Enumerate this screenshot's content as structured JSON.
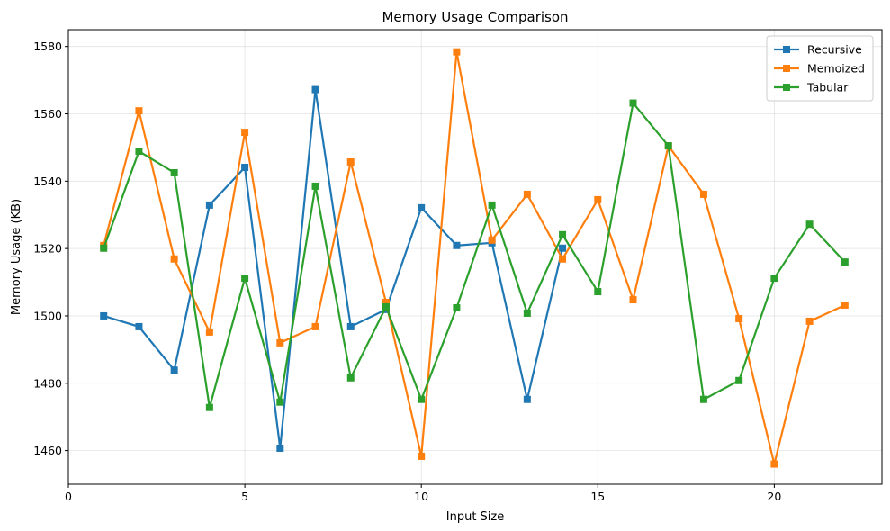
{
  "chart_data": {
    "type": "line",
    "title": "Memory Usage Comparison",
    "xlabel": "Input Size",
    "ylabel": "Memory Usage (KB)",
    "xlim": [
      0,
      23.05
    ],
    "ylim": [
      1450,
      1585
    ],
    "xticks": [
      0,
      5,
      10,
      15,
      20
    ],
    "yticks": [
      1460,
      1480,
      1500,
      1520,
      1540,
      1560,
      1580
    ],
    "grid": true,
    "legend_position": "top-right",
    "x": [
      1,
      2,
      3,
      4,
      5,
      6,
      7,
      8,
      9,
      10,
      11,
      12,
      13,
      14,
      15,
      16,
      17,
      18,
      19,
      20,
      21,
      22
    ],
    "series": [
      {
        "name": "Recursive",
        "color": "#1f77b4",
        "x": [
          1,
          2,
          3,
          4,
          5,
          6,
          7,
          8,
          9,
          10,
          11,
          12,
          13,
          14
        ],
        "values": [
          1500.0,
          1496.8,
          1483.9,
          1532.9,
          1544.1,
          1460.7,
          1567.2,
          1496.8,
          1501.9,
          1532.1,
          1520.9,
          1521.7,
          1475.2,
          1520.1
        ]
      },
      {
        "name": "Memoized",
        "color": "#ff7f0e",
        "x": [
          1,
          2,
          3,
          4,
          5,
          6,
          7,
          8,
          9,
          10,
          11,
          12,
          13,
          14,
          15,
          16,
          17,
          18,
          19,
          20,
          21,
          22
        ],
        "values": [
          1520.9,
          1560.9,
          1516.9,
          1495.2,
          1554.5,
          1492.0,
          1496.8,
          1545.7,
          1504.0,
          1458.3,
          1578.4,
          1522.5,
          1536.1,
          1516.9,
          1534.5,
          1504.8,
          1550.5,
          1536.1,
          1499.2,
          1456.0,
          1498.4,
          1503.2
        ]
      },
      {
        "name": "Tabular",
        "color": "#2ca02c",
        "x": [
          1,
          2,
          3,
          4,
          5,
          6,
          7,
          8,
          9,
          10,
          11,
          12,
          13,
          14,
          15,
          16,
          17,
          18,
          19,
          20,
          21,
          22
        ],
        "values": [
          1520.1,
          1548.9,
          1542.5,
          1472.8,
          1511.2,
          1474.4,
          1538.5,
          1481.6,
          1502.7,
          1475.2,
          1502.4,
          1532.9,
          1500.8,
          1524.1,
          1507.2,
          1563.2,
          1550.5,
          1475.2,
          1480.8,
          1511.2,
          1527.2,
          1516.0
        ]
      }
    ]
  }
}
